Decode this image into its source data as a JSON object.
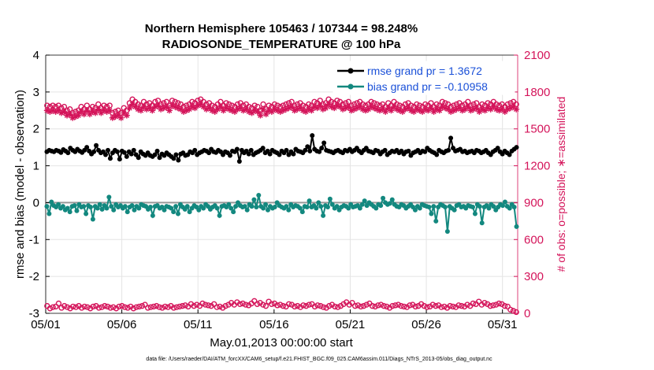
{
  "chart_data": {
    "type": "line",
    "title": "Northern Hemisphere 105463 / 107344 = 98.248%",
    "subtitle": "RADIOSONDE_TEMPERATURE @ 100 hPa",
    "xlabel": "May.01,2013 00:00:00 start",
    "ylabel": "rmse and bias (model - observation)",
    "ylabel_right": "# of obs: o=possible; ∗=assimilated",
    "xlim": [
      0,
      31
    ],
    "ylim": [
      -3,
      4
    ],
    "ylim_right": [
      0,
      2100
    ],
    "xticks": [
      0,
      5,
      10,
      15,
      20,
      25,
      30
    ],
    "xtick_labels": [
      "05/01",
      "05/06",
      "05/11",
      "05/16",
      "05/21",
      "05/26",
      "05/31"
    ],
    "yticks": [
      -3,
      -2,
      -1,
      0,
      1,
      2,
      3,
      4
    ],
    "yticks_right": [
      0,
      300,
      600,
      900,
      1200,
      1500,
      1800,
      2100
    ],
    "grid": true,
    "legend_position": "top-right",
    "series": [
      {
        "name": "rmse grand pr = 1.3672",
        "axis": "left",
        "color": "#000000",
        "marker": "o",
        "values": [
          1.38,
          1.42,
          1.4,
          1.38,
          1.42,
          1.4,
          1.36,
          1.44,
          1.4,
          1.35,
          1.48,
          1.42,
          1.38,
          1.45,
          1.4,
          1.36,
          1.42,
          1.5,
          1.4,
          1.32,
          1.38,
          1.55,
          1.42,
          1.35,
          1.38,
          1.3,
          1.42,
          1.2,
          1.35,
          1.42,
          1.38,
          1.18,
          1.4,
          1.36,
          1.25,
          1.38,
          1.32,
          1.42,
          1.3,
          1.22,
          1.38,
          1.32,
          1.28,
          1.35,
          1.28,
          1.25,
          1.3,
          1.4,
          1.22,
          1.32,
          1.28,
          1.35,
          1.3,
          1.25,
          1.2,
          1.3,
          1.15,
          1.32,
          1.35,
          1.28,
          1.3,
          1.38,
          1.35,
          1.42,
          1.3,
          1.35,
          1.38,
          1.42,
          1.4,
          1.35,
          1.45,
          1.38,
          1.36,
          1.42,
          1.38,
          1.3,
          1.38,
          1.35,
          1.28,
          1.4,
          1.38,
          1.45,
          1.12,
          1.42,
          1.35,
          1.4,
          1.32,
          1.42,
          1.3,
          1.35,
          1.38,
          1.42,
          1.48,
          1.35,
          1.4,
          1.32,
          1.42,
          1.38,
          1.35,
          1.3,
          1.4,
          1.35,
          1.42,
          1.3,
          1.38,
          1.32,
          1.45,
          1.4,
          1.38,
          1.35,
          1.42,
          1.52,
          1.4,
          1.82,
          1.45,
          1.4,
          1.38,
          1.48,
          1.62,
          1.42,
          1.4,
          1.38,
          1.35,
          1.4,
          1.42,
          1.38,
          1.35,
          1.42,
          1.4,
          1.45,
          1.38,
          1.42,
          1.48,
          1.4,
          1.35,
          1.42,
          1.48,
          1.4,
          1.38,
          1.35,
          1.42,
          1.4,
          1.32,
          1.38,
          1.42,
          1.3,
          1.35,
          1.4,
          1.38,
          1.42,
          1.35,
          1.4,
          1.32,
          1.38,
          1.4,
          1.28,
          1.35,
          1.38,
          1.42,
          1.35,
          1.4,
          1.38,
          1.48,
          1.42,
          1.38,
          1.35,
          1.3,
          1.42,
          1.38,
          1.35,
          1.4,
          1.42,
          1.75,
          1.48,
          1.4,
          1.42,
          1.45,
          1.38,
          1.4,
          1.35,
          1.38,
          1.4,
          1.35,
          1.42,
          1.4,
          1.35,
          1.38,
          1.42,
          1.35,
          1.3,
          1.38,
          1.42,
          1.48,
          1.38,
          1.32,
          1.4,
          1.35,
          1.3,
          1.4,
          1.45,
          1.5
        ]
      },
      {
        "name": "bias grand pr = -0.10958",
        "axis": "left",
        "color": "#13887f",
        "marker": "o",
        "values": [
          -0.1,
          -0.3,
          0.02,
          -0.08,
          -0.12,
          -0.05,
          -0.15,
          -0.1,
          -0.2,
          -0.15,
          -0.25,
          -0.1,
          -0.08,
          -0.22,
          -0.05,
          -0.12,
          -0.1,
          -0.3,
          -0.08,
          -0.12,
          -0.45,
          -0.1,
          -0.15,
          -0.05,
          -0.18,
          -0.08,
          -0.15,
          0.15,
          -0.1,
          -0.2,
          -0.05,
          -0.12,
          -0.08,
          -0.15,
          -0.1,
          -0.25,
          -0.12,
          -0.08,
          -0.2,
          -0.1,
          -0.15,
          -0.05,
          -0.08,
          -0.1,
          -0.18,
          -0.12,
          -0.35,
          -0.1,
          -0.08,
          -0.15,
          -0.12,
          -0.2,
          -0.1,
          -0.12,
          -0.15,
          -0.25,
          -0.1,
          -0.3,
          -0.05,
          -0.12,
          -0.18,
          -0.1,
          -0.25,
          -0.15,
          -0.08,
          -0.12,
          -0.2,
          -0.1,
          -0.15,
          -0.05,
          -0.1,
          -0.18,
          -0.12,
          -0.08,
          -0.15,
          -0.35,
          -0.1,
          -0.08,
          -0.12,
          -0.05,
          -0.15,
          -0.25,
          -0.1,
          0.0,
          -0.08,
          -0.12,
          -0.1,
          -0.2,
          -0.05,
          -0.1,
          0.08,
          -0.12,
          0.2,
          -0.1,
          -0.15,
          -0.05,
          -0.2,
          -0.1,
          -0.15,
          -0.12,
          0.0,
          -0.08,
          -0.12,
          -0.15,
          -0.1,
          -0.2,
          -0.05,
          -0.12,
          -0.08,
          -0.1,
          -0.15,
          -0.25,
          -0.1,
          -0.12,
          0.05,
          -0.12,
          -0.08,
          -0.15,
          0.0,
          -0.1,
          -0.35,
          -0.08,
          -0.12,
          0.1,
          -0.05,
          -0.15,
          -0.1,
          -0.2,
          -0.12,
          -0.08,
          -0.1,
          -0.15,
          -0.05,
          -0.12,
          -0.1,
          -0.08,
          -0.15,
          -0.05,
          0.05,
          -0.08,
          0.0,
          -0.05,
          -0.1,
          -0.15,
          -0.05,
          -0.08,
          0.12,
          0.0,
          -0.05,
          -0.02,
          0.08,
          -0.05,
          -0.1,
          -0.12,
          -0.05,
          -0.08,
          -0.15,
          -0.1,
          -0.05,
          -0.12,
          -0.2,
          -0.1,
          -0.15,
          -0.05,
          -0.08,
          -0.1,
          -0.12,
          -0.3,
          -0.1,
          -0.5,
          -0.12,
          -0.05,
          -0.08,
          -0.12,
          -0.78,
          -0.1,
          -0.15,
          -0.2,
          -0.08,
          -0.05,
          -0.12,
          -0.1,
          -0.15,
          -0.08,
          -0.1,
          -0.12,
          -0.3,
          -0.05,
          -0.1,
          -0.55,
          -0.12,
          -0.08,
          -0.15,
          -0.05,
          -0.1,
          -0.2,
          -0.12,
          -0.05,
          -0.08,
          0.02,
          -0.1,
          -0.15,
          -0.05,
          -0.12,
          -0.65
        ]
      },
      {
        "name": "possible",
        "axis": "right",
        "color": "#d4145a",
        "marker": "o",
        "values": [
          1690,
          1680,
          1690,
          1680,
          1690,
          1670,
          1680,
          1650,
          1660,
          1630,
          1640,
          1650,
          1680,
          1660,
          1690,
          1660,
          1680,
          1670,
          1700,
          1670,
          1690,
          1680,
          1690,
          1630,
          1640,
          1650,
          1630,
          1670,
          1650,
          1710,
          1740,
          1720,
          1700,
          1690,
          1720,
          1700,
          1710,
          1690,
          1720,
          1730,
          1700,
          1710,
          1720,
          1690,
          1730,
          1720,
          1710,
          1700,
          1680,
          1690,
          1700,
          1720,
          1710,
          1730,
          1740,
          1720,
          1700,
          1710,
          1690,
          1680,
          1700,
          1720,
          1690,
          1710,
          1700,
          1690,
          1680,
          1700,
          1710,
          1690,
          1700,
          1680,
          1670,
          1690,
          1680,
          1650,
          1700,
          1660,
          1690,
          1680,
          1700,
          1690,
          1680,
          1690,
          1700,
          1710,
          1720,
          1690,
          1700,
          1710,
          1690,
          1680,
          1700,
          1690,
          1720,
          1710,
          1730,
          1700,
          1710,
          1740,
          1720,
          1710,
          1730,
          1720,
          1700,
          1710,
          1720,
          1690,
          1700,
          1710,
          1720,
          1700,
          1690,
          1700,
          1720,
          1710,
          1700,
          1690,
          1700,
          1680,
          1710,
          1690,
          1720,
          1700,
          1690,
          1680,
          1700,
          1710,
          1690,
          1680,
          1700,
          1690,
          1680,
          1700,
          1690,
          1710,
          1680,
          1700,
          1690,
          1720,
          1710,
          1700,
          1680,
          1690,
          1700,
          1710,
          1690,
          1700,
          1720,
          1690,
          1700,
          1710,
          1680,
          1700,
          1690,
          1710,
          1700,
          1720,
          1700,
          1690,
          1700,
          1680,
          1700,
          1710,
          1720,
          1700
        ]
      },
      {
        "name": "assimilated",
        "axis": "right",
        "color": "#d4145a",
        "marker": "*",
        "values": [
          1650,
          1640,
          1650,
          1640,
          1650,
          1630,
          1640,
          1610,
          1620,
          1590,
          1600,
          1610,
          1640,
          1620,
          1650,
          1620,
          1640,
          1630,
          1660,
          1630,
          1650,
          1640,
          1650,
          1590,
          1600,
          1610,
          1590,
          1630,
          1610,
          1670,
          1700,
          1680,
          1660,
          1650,
          1680,
          1660,
          1670,
          1650,
          1680,
          1690,
          1660,
          1670,
          1680,
          1650,
          1690,
          1680,
          1670,
          1660,
          1640,
          1650,
          1660,
          1680,
          1670,
          1690,
          1700,
          1680,
          1660,
          1670,
          1650,
          1640,
          1660,
          1680,
          1650,
          1670,
          1660,
          1650,
          1640,
          1660,
          1670,
          1650,
          1660,
          1640,
          1630,
          1650,
          1640,
          1610,
          1660,
          1620,
          1650,
          1640,
          1660,
          1650,
          1640,
          1650,
          1660,
          1670,
          1680,
          1650,
          1660,
          1670,
          1650,
          1640,
          1660,
          1650,
          1680,
          1670,
          1690,
          1660,
          1670,
          1700,
          1680,
          1670,
          1690,
          1680,
          1660,
          1670,
          1680,
          1650,
          1660,
          1670,
          1680,
          1660,
          1650,
          1660,
          1680,
          1670,
          1660,
          1650,
          1660,
          1640,
          1670,
          1650,
          1680,
          1660,
          1650,
          1640,
          1660,
          1670,
          1650,
          1640,
          1660,
          1650,
          1640,
          1660,
          1650,
          1670,
          1640,
          1660,
          1650,
          1680,
          1670,
          1660,
          1640,
          1650,
          1660,
          1670,
          1650,
          1660,
          1680,
          1650,
          1660,
          1670,
          1640,
          1660,
          1650,
          1670,
          1660,
          1680,
          1660,
          1650,
          1660,
          1640,
          1660,
          1670,
          1680,
          1660
        ]
      },
      {
        "name": "possible (rmse bin)",
        "axis": "right",
        "color": "#d4145a",
        "marker": "o",
        "values": [
          60,
          40,
          50,
          55,
          80,
          45,
          60,
          50,
          40,
          55,
          50,
          60,
          45,
          55,
          50,
          40,
          55,
          60,
          45,
          50,
          60,
          55,
          45,
          50,
          40,
          55,
          60,
          50,
          45,
          55,
          40,
          50,
          55,
          60,
          70,
          45,
          50,
          55,
          60,
          50,
          45,
          55,
          50,
          60,
          45,
          50,
          55,
          60,
          65,
          55,
          75,
          60,
          70,
          60,
          80,
          70,
          65,
          60,
          75,
          50,
          55,
          45,
          60,
          70,
          85,
          70,
          90,
          75,
          80,
          70,
          65,
          80,
          100,
          75,
          85,
          70,
          60,
          95,
          75,
          80,
          65,
          70,
          60,
          55,
          75,
          70,
          55,
          60,
          50,
          65,
          60,
          70,
          75,
          55,
          65,
          60,
          50,
          45,
          60,
          70,
          55,
          50,
          60,
          75,
          90,
          70,
          85,
          60,
          65,
          55,
          60,
          70,
          80,
          60,
          55,
          65,
          70,
          60,
          55,
          45,
          60,
          65,
          70,
          60,
          55,
          50,
          65,
          70,
          55,
          60,
          75,
          60,
          50,
          55,
          70,
          60,
          65,
          50,
          55,
          45,
          60,
          55,
          50,
          65,
          60,
          55,
          70,
          60,
          80,
          75,
          95,
          70,
          85,
          75,
          60,
          65,
          70,
          80,
          75,
          60,
          55,
          30,
          20,
          10
        ]
      }
    ]
  },
  "legend": {
    "rmse_label": "rmse grand pr = 1.3672",
    "bias_label": "bias grand pr = -0.10958"
  },
  "footnote": "data file: /Users/raeder/DAI/ATM_forcXX/CAM6_setup/f.e21.FHIST_BGC.f09_025.CAM6assim.011/Diags_NTrS_2013-05/obs_diag_output.nc"
}
